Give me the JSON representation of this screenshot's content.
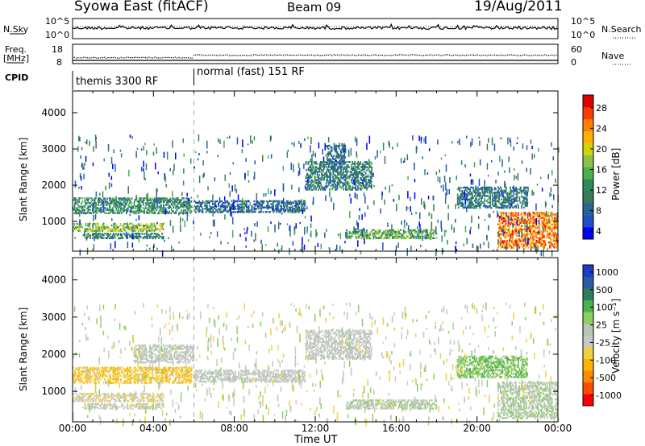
{
  "header": {
    "station": "Syowa East (fitACF)",
    "beam": "Beam 09",
    "date": "19/Aug/2011"
  },
  "top_panels": {
    "nsky_label": "N.Sky",
    "nsky_ticks": [
      "10^5",
      "10^0"
    ],
    "nsearch_label": "N.Search",
    "nsearch_ticks": [
      "10^5",
      "10^0"
    ],
    "freq_label_1": "Freq.",
    "freq_label_2": "[MHz]",
    "freq_ticks": [
      "18",
      "8"
    ],
    "nave_label": "Nave",
    "nave_ticks": [
      "60",
      "0"
    ],
    "cpid_label": "CPID",
    "cpid_segments": [
      {
        "label": "themis 3300 RF",
        "start_hour": 0,
        "end_hour": 6
      },
      {
        "label": "normal (fast) 151 RF",
        "start_hour": 6,
        "end_hour": 24
      }
    ]
  },
  "x_axis": {
    "label": "Time UT",
    "ticks": [
      "00:00",
      "04:00",
      "08:00",
      "12:00",
      "16:00",
      "20:00",
      "00:00"
    ]
  },
  "chart_data": [
    {
      "type": "heatmap",
      "title": "Power",
      "ylabel": "Slant Range [km]",
      "xlabel": "",
      "ylim": [
        180,
        4600
      ],
      "xlim": [
        0,
        24
      ],
      "y_ticks": [
        "1000",
        "2000",
        "3000",
        "4000"
      ],
      "colorbar": {
        "label": "Power [dB]",
        "ticks": [
          "28",
          "24",
          "20",
          "16",
          "12",
          "8",
          "4"
        ],
        "range": [
          0,
          30
        ],
        "colors": [
          "#0000ff",
          "#1e50c8",
          "#2a6496",
          "#3a7a5a",
          "#2e8b57",
          "#4caf50",
          "#8bc34a",
          "#d4d400",
          "#ffb000",
          "#ff7f00",
          "#ff3a00",
          "#e00000"
        ]
      },
      "regions": [
        {
          "x": [
            0.0,
            5.9
          ],
          "y": [
            1250,
            1700
          ],
          "value": 10
        },
        {
          "x": [
            0.0,
            4.5
          ],
          "y": [
            760,
            1000
          ],
          "value": 16
        },
        {
          "x": [
            0.5,
            4.5
          ],
          "y": [
            560,
            720
          ],
          "value": 9
        },
        {
          "x": [
            6.0,
            11.5
          ],
          "y": [
            1280,
            1620
          ],
          "value": 7
        },
        {
          "x": [
            11.5,
            14.8
          ],
          "y": [
            1900,
            2700
          ],
          "value": 9
        },
        {
          "x": [
            12.5,
            13.5
          ],
          "y": [
            2600,
            3200
          ],
          "value": 7
        },
        {
          "x": [
            13.5,
            18.0
          ],
          "y": [
            560,
            820
          ],
          "value": 13
        },
        {
          "x": [
            19.0,
            22.5
          ],
          "y": [
            1400,
            2000
          ],
          "value": 8
        },
        {
          "x": [
            21.0,
            24.0
          ],
          "y": [
            300,
            1300
          ],
          "value": 24
        }
      ]
    },
    {
      "type": "heatmap",
      "title": "Velocity",
      "ylabel": "Slant Range [km]",
      "xlabel": "Time UT",
      "ylim": [
        180,
        4600
      ],
      "xlim": [
        0,
        24
      ],
      "y_ticks": [
        "1000",
        "2000",
        "3000",
        "4000"
      ],
      "colorbar": {
        "label": "Velocity [m s⁻¹]",
        "ticks": [
          "1000",
          "500",
          "100",
          "25",
          "-25",
          "-100",
          "-500",
          "-1000"
        ],
        "range": [
          -1000,
          1000
        ],
        "colors": [
          "#ff0000",
          "#ff4c00",
          "#ff8c00",
          "#ffb400",
          "#f0d040",
          "#c8c8c8",
          "#b4c8b4",
          "#8fcf5a",
          "#4caf50",
          "#2e7d5e",
          "#2a5aa0",
          "#1e3cc8"
        ]
      },
      "regions": [
        {
          "x": [
            0.0,
            5.9
          ],
          "y": [
            1250,
            1700
          ],
          "value": -300
        },
        {
          "x": [
            0.0,
            4.5
          ],
          "y": [
            760,
            1000
          ],
          "value": -150
        },
        {
          "x": [
            0.5,
            4.5
          ],
          "y": [
            560,
            720
          ],
          "value": -60
        },
        {
          "x": [
            3.0,
            6.0
          ],
          "y": [
            1800,
            2300
          ],
          "value": 0
        },
        {
          "x": [
            6.0,
            11.5
          ],
          "y": [
            1280,
            1620
          ],
          "value": 0
        },
        {
          "x": [
            11.5,
            14.8
          ],
          "y": [
            1900,
            2700
          ],
          "value": 0
        },
        {
          "x": [
            13.5,
            18.0
          ],
          "y": [
            560,
            820
          ],
          "value": 80
        },
        {
          "x": [
            19.0,
            22.5
          ],
          "y": [
            1400,
            2000
          ],
          "value": 300
        },
        {
          "x": [
            21.0,
            24.0
          ],
          "y": [
            300,
            1300
          ],
          "value": 100
        }
      ]
    }
  ]
}
